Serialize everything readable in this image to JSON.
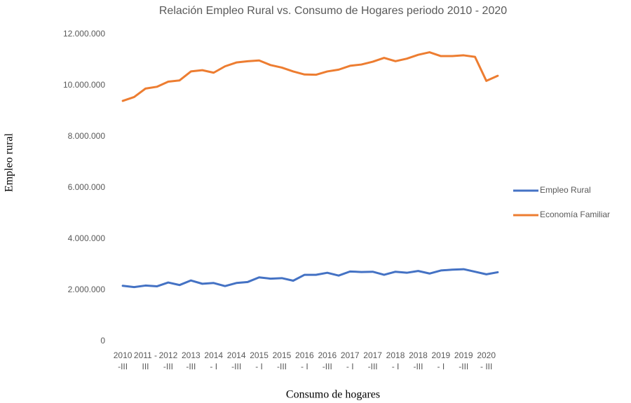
{
  "chart_data": {
    "type": "line",
    "title": "Relación Empleo Rural vs. Consumo de Hogares periodo 2010 - 2020",
    "y_label": "Empleo rural",
    "x_label": "Consumo de hogares",
    "categories": [
      "2010 -III",
      null,
      "2011 -III",
      null,
      "2012 -III",
      null,
      "2013 -III",
      null,
      "2014 - I",
      null,
      "2014 -III",
      null,
      "2015 - I",
      null,
      "2015 -III",
      null,
      "2016 - I",
      null,
      "2016 -III",
      null,
      "2017 - I",
      null,
      "2017 -III",
      null,
      "2018 - I",
      null,
      "2018 -III",
      null,
      "2019 - I",
      null,
      "2019 -III",
      null,
      "2020 - III",
      null
    ],
    "series": [
      {
        "name": "Empleo Rural",
        "color": "#4472c4",
        "values": [
          2170000,
          2120000,
          2180000,
          2150000,
          2300000,
          2200000,
          2380000,
          2250000,
          2280000,
          2160000,
          2280000,
          2320000,
          2500000,
          2450000,
          2470000,
          2370000,
          2600000,
          2600000,
          2680000,
          2570000,
          2730000,
          2710000,
          2720000,
          2600000,
          2720000,
          2680000,
          2750000,
          2650000,
          2770000,
          2800000,
          2820000,
          2720000,
          2620000,
          2700000
        ]
      },
      {
        "name": "Economía Familiar",
        "color": "#ed7d31",
        "values": [
          9400000,
          9550000,
          9880000,
          9950000,
          10150000,
          10200000,
          10550000,
          10600000,
          10500000,
          10750000,
          10900000,
          10950000,
          10980000,
          10800000,
          10700000,
          10550000,
          10430000,
          10420000,
          10550000,
          10620000,
          10770000,
          10820000,
          10930000,
          11080000,
          10950000,
          11050000,
          11200000,
          11300000,
          11150000,
          11150000,
          11180000,
          11120000,
          10180000,
          10380000
        ]
      }
    ],
    "ylim": [
      0,
      12000000
    ],
    "yticks": [
      0,
      {
        "value": 2000000,
        "label": "2.000.000"
      },
      {
        "value": 4000000,
        "label": "4.000.000"
      },
      {
        "value": 6000000,
        "label": "6.000.000"
      },
      {
        "value": 8000000,
        "label": "8.000.000"
      },
      {
        "value": 10000000,
        "label": "10.000.000"
      },
      {
        "value": 12000000,
        "label": "12.000.000"
      }
    ],
    "grid": false,
    "legend": "right"
  }
}
